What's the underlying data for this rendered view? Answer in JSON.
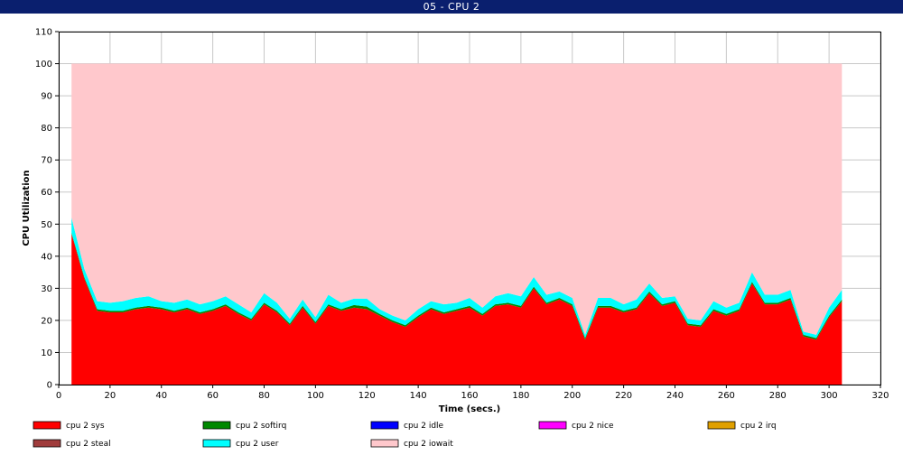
{
  "window": {
    "title": "05 - CPU 2"
  },
  "chart_data": {
    "type": "area",
    "stacked": true,
    "xlabel": "Time (secs.)",
    "ylabel": "CPU Utilization",
    "xlim": [
      0,
      320
    ],
    "ylim": [
      0,
      110
    ],
    "xticks": [
      0,
      20,
      40,
      60,
      80,
      100,
      120,
      140,
      160,
      180,
      200,
      220,
      240,
      260,
      280,
      300,
      320
    ],
    "yticks": [
      0,
      10,
      20,
      30,
      40,
      50,
      60,
      70,
      80,
      90,
      100,
      110
    ],
    "grid": true,
    "legend_position": "bottom",
    "x": [
      5,
      10,
      15,
      20,
      25,
      30,
      35,
      40,
      45,
      50,
      55,
      60,
      65,
      70,
      75,
      80,
      85,
      90,
      95,
      100,
      105,
      110,
      115,
      120,
      125,
      130,
      135,
      140,
      145,
      150,
      155,
      160,
      165,
      170,
      175,
      180,
      185,
      190,
      195,
      200,
      205,
      210,
      215,
      220,
      225,
      230,
      235,
      240,
      245,
      250,
      255,
      260,
      265,
      270,
      275,
      280,
      285,
      290,
      295,
      300,
      305
    ],
    "series": [
      {
        "name": "cpu 2 sys",
        "color": "#ff0000",
        "values": [
          47,
          33,
          23,
          22.5,
          22.5,
          23.5,
          24,
          23.5,
          22.5,
          23.5,
          22,
          23,
          24.5,
          22,
          20,
          25,
          22.5,
          18.5,
          24,
          19,
          24.5,
          23,
          24,
          23.5,
          21.5,
          19.5,
          18,
          21,
          23.5,
          22,
          23,
          24,
          21.5,
          24.5,
          25,
          24,
          30,
          25,
          26.5,
          24.5,
          14,
          24,
          24,
          22.5,
          23.5,
          28.5,
          24.5,
          25.5,
          18.5,
          18,
          23,
          21.5,
          23,
          31.5,
          25,
          25,
          26.5,
          15,
          14,
          21,
          26
        ]
      },
      {
        "name": "cpu 2 softirq",
        "color": "#008800",
        "values": [
          0.3,
          0.4,
          0.5,
          0.5,
          0.5,
          0.5,
          0.5,
          0.5,
          0.5,
          0.5,
          0.5,
          0.5,
          0.5,
          0.5,
          0.5,
          0.5,
          0.5,
          0.5,
          0.5,
          0.5,
          0.5,
          0.5,
          0.8,
          0.8,
          0.5,
          0.5,
          0.5,
          0.5,
          0.5,
          0.5,
          0.5,
          0.5,
          0.5,
          0.5,
          0.5,
          0.5,
          0.5,
          0.5,
          0.5,
          0.5,
          0.5,
          0.5,
          0.5,
          0.5,
          0.5,
          0.5,
          0.5,
          0.5,
          0.5,
          0.5,
          0.5,
          0.5,
          0.5,
          0.5,
          0.5,
          0.5,
          0.5,
          0.5,
          0.5,
          0.5,
          0.5
        ]
      },
      {
        "name": "cpu 2 idle",
        "color": "#0000ff",
        "values": [
          0,
          0,
          0,
          0,
          0,
          0,
          0,
          0,
          0,
          0,
          0,
          0,
          0,
          0,
          0,
          0,
          0,
          0,
          0,
          0,
          0,
          0,
          0,
          0,
          0,
          0,
          0,
          0,
          0,
          0,
          0,
          0,
          0,
          0,
          0,
          0,
          0,
          0,
          0,
          0,
          0,
          0,
          0,
          0,
          0,
          0,
          0,
          0,
          0,
          0,
          0,
          0,
          0,
          0,
          0,
          0,
          0,
          0,
          0,
          0,
          0
        ]
      },
      {
        "name": "cpu 2 nice",
        "color": "#ff00ff",
        "values": [
          0,
          0,
          0,
          0,
          0,
          0,
          0,
          0,
          0,
          0,
          0,
          0,
          0,
          0,
          0,
          0,
          0,
          0,
          0,
          0,
          0,
          0,
          0,
          0,
          0,
          0,
          0,
          0,
          0,
          0,
          0,
          0,
          0,
          0,
          0,
          0,
          0,
          0,
          0,
          0,
          0,
          0,
          0,
          0,
          0,
          0,
          0,
          0,
          0,
          0,
          0,
          0,
          0,
          0,
          0,
          0,
          0,
          0,
          0,
          0,
          0
        ]
      },
      {
        "name": "cpu 2 irq",
        "color": "#e0a000",
        "values": [
          0,
          0,
          0,
          0,
          0,
          0,
          0,
          0,
          0,
          0,
          0,
          0,
          0,
          0,
          0,
          0,
          0,
          0,
          0,
          0,
          0,
          0,
          0,
          0,
          0,
          0,
          0,
          0,
          0,
          0,
          0,
          0,
          0,
          0,
          0,
          0,
          0,
          0,
          0,
          0,
          0,
          0,
          0,
          0,
          0,
          0,
          0,
          0,
          0,
          0,
          0,
          0,
          0,
          0,
          0,
          0,
          0,
          0,
          0,
          0,
          0
        ]
      },
      {
        "name": "cpu 2 steal",
        "color": "#a03c3c",
        "values": [
          0,
          0,
          0,
          0,
          0,
          0,
          0,
          0,
          0,
          0,
          0,
          0,
          0,
          0,
          0,
          0,
          0,
          0,
          0,
          0,
          0,
          0,
          0,
          0,
          0,
          0,
          0,
          0,
          0,
          0,
          0,
          0,
          0,
          0,
          0,
          0,
          0,
          0,
          0,
          0,
          0,
          0,
          0,
          0,
          0,
          0,
          0,
          0,
          0,
          0,
          0,
          0,
          0,
          0,
          0,
          0,
          0,
          0,
          0,
          0,
          0
        ]
      },
      {
        "name": "cpu 2 user",
        "color": "#00ffff",
        "values": [
          4.7,
          2.6,
          2.5,
          2.5,
          3,
          3,
          3,
          2,
          2.5,
          2.5,
          2.5,
          2.5,
          2.5,
          2.5,
          2,
          3,
          2.5,
          1.5,
          2,
          1.5,
          3,
          2,
          2,
          2.5,
          1.5,
          1.5,
          1.5,
          2,
          2,
          2.5,
          2,
          2.5,
          2,
          2.5,
          3,
          3,
          3,
          2.5,
          2,
          2,
          1,
          2.5,
          2.5,
          2,
          2.5,
          2.5,
          2,
          1.5,
          1.5,
          1.5,
          2.5,
          2,
          2,
          3,
          2.5,
          2.5,
          2.5,
          1,
          1,
          2.5,
          3
        ]
      },
      {
        "name": "cpu 2 iowait",
        "color": "#ffc8cc",
        "values": [
          48,
          64,
          74,
          74.5,
          74,
          73,
          72.5,
          74,
          74.5,
          73.5,
          75,
          74,
          72.5,
          75,
          77.5,
          71.5,
          74.5,
          79.5,
          73.5,
          79,
          72,
          74.5,
          73.2,
          73.2,
          76.5,
          78.5,
          80,
          76.5,
          74,
          75,
          74.5,
          73,
          76,
          72.5,
          71.5,
          72.5,
          66.5,
          72,
          71,
          73,
          84.5,
          73,
          73,
          75,
          73.5,
          68.5,
          73,
          72.5,
          79.5,
          80,
          74,
          76,
          74.5,
          65,
          72,
          72,
          70.5,
          83.5,
          84.5,
          76,
          70.5
        ]
      }
    ]
  }
}
